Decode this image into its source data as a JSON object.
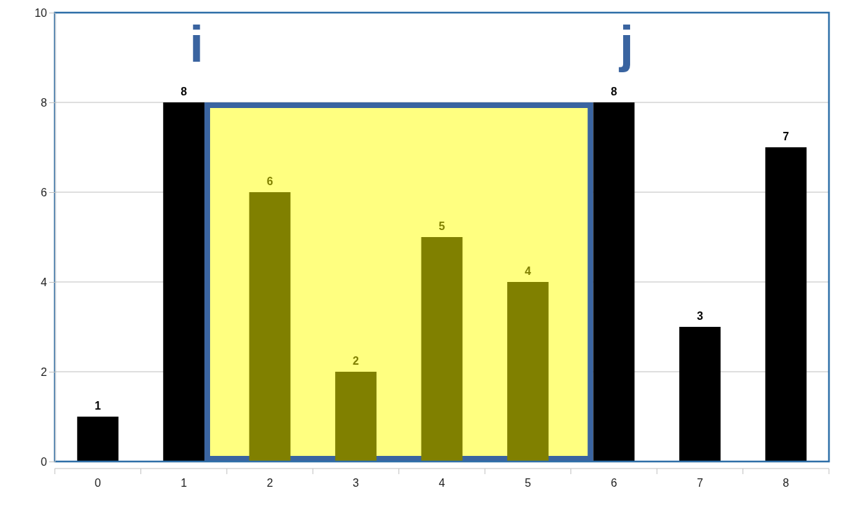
{
  "chart_data": {
    "type": "bar",
    "categories": [
      "0",
      "1",
      "2",
      "3",
      "4",
      "5",
      "6",
      "7",
      "8"
    ],
    "values": [
      1,
      8,
      6,
      2,
      5,
      4,
      8,
      3,
      7
    ],
    "colors": [
      "#000000",
      "#000000",
      "#808000",
      "#808000",
      "#808000",
      "#808000",
      "#000000",
      "#000000",
      "#000000"
    ],
    "ylim": [
      0,
      10
    ],
    "yticks": [
      0,
      2,
      4,
      6,
      8,
      10
    ],
    "grid": "y",
    "data_labels": true,
    "bands": [
      {
        "axis": "x",
        "from": "1",
        "to": "6",
        "color": "#ffff80"
      }
    ],
    "annotations": [
      "i",
      "j"
    ]
  }
}
